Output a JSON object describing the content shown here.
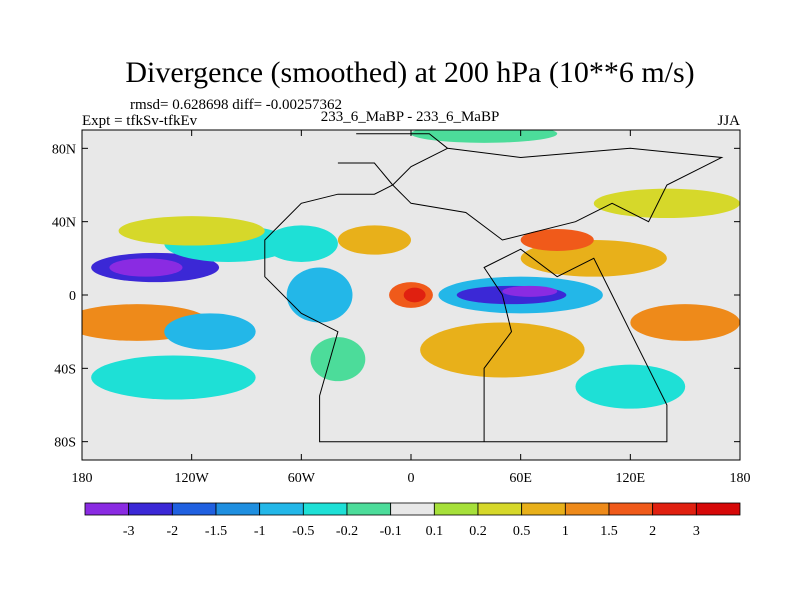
{
  "chart_data": {
    "type": "heatmap",
    "title": "Divergence (smoothed) at 200 hPa (10**6 m/s)",
    "stats_line": "rmsd= 0.628698 diff= -0.00257362",
    "experiment_label": "Expt = tfkSv-tfkEv",
    "case_label": "233_6_MaBP - 233_6_MaBP",
    "season": "JJA",
    "xlim": [
      -180,
      180
    ],
    "ylim": [
      -90,
      90
    ],
    "x_ticks": [
      {
        "value": -180,
        "label": "180"
      },
      {
        "value": -120,
        "label": "120W"
      },
      {
        "value": -60,
        "label": "60W"
      },
      {
        "value": 0,
        "label": "0"
      },
      {
        "value": 60,
        "label": "60E"
      },
      {
        "value": 120,
        "label": "120E"
      },
      {
        "value": 180,
        "label": "180"
      }
    ],
    "y_ticks": [
      {
        "value": 80,
        "label": "80N"
      },
      {
        "value": 40,
        "label": "40N"
      },
      {
        "value": 0,
        "label": "0"
      },
      {
        "value": -40,
        "label": "40S"
      },
      {
        "value": -80,
        "label": "80S"
      }
    ],
    "colorbar_labels": [
      "-3",
      "-2",
      "-1.5",
      "-1",
      "-0.5",
      "-0.2",
      "-0.1",
      "0.1",
      "0.2",
      "0.5",
      "1",
      "1.5",
      "2",
      "3"
    ],
    "colors": [
      "#8a2be2",
      "#3b28d6",
      "#2060e0",
      "#1f8fe0",
      "#23b7e8",
      "#1ee0d6",
      "#4cdc9a",
      "#e8e8e8",
      "#a6e03a",
      "#d6d82a",
      "#e8b01a",
      "#ee8a1a",
      "#f05a1a",
      "#e02010",
      "#d60808"
    ],
    "regions": [
      {
        "lon": -140,
        "lat": 15,
        "rx": 35,
        "ry": 8,
        "level": 1
      },
      {
        "lon": -145,
        "lat": 15,
        "rx": 20,
        "ry": 5,
        "level": 0
      },
      {
        "lon": -100,
        "lat": 28,
        "rx": 35,
        "ry": 10,
        "level": 5
      },
      {
        "lon": -60,
        "lat": 28,
        "rx": 20,
        "ry": 10,
        "level": 5
      },
      {
        "lon": -120,
        "lat": 35,
        "rx": 40,
        "ry": 8,
        "level": 9
      },
      {
        "lon": -150,
        "lat": -15,
        "rx": 40,
        "ry": 10,
        "level": 11
      },
      {
        "lon": -110,
        "lat": -20,
        "rx": 25,
        "ry": 10,
        "level": 4
      },
      {
        "lon": -130,
        "lat": -45,
        "rx": 45,
        "ry": 12,
        "level": 5
      },
      {
        "lon": -50,
        "lat": 0,
        "rx": 18,
        "ry": 15,
        "level": 4
      },
      {
        "lon": -40,
        "lat": -35,
        "rx": 15,
        "ry": 12,
        "level": 6
      },
      {
        "lon": -20,
        "lat": 30,
        "rx": 20,
        "ry": 8,
        "level": 10
      },
      {
        "lon": 0,
        "lat": 0,
        "rx": 12,
        "ry": 7,
        "level": 12
      },
      {
        "lon": 2,
        "lat": 0,
        "rx": 6,
        "ry": 4,
        "level": 13
      },
      {
        "lon": 60,
        "lat": 0,
        "rx": 45,
        "ry": 10,
        "level": 4
      },
      {
        "lon": 55,
        "lat": 0,
        "rx": 30,
        "ry": 5,
        "level": 1
      },
      {
        "lon": 65,
        "lat": 2,
        "rx": 15,
        "ry": 3,
        "level": 0
      },
      {
        "lon": 50,
        "lat": -30,
        "rx": 45,
        "ry": 15,
        "level": 10
      },
      {
        "lon": 100,
        "lat": 20,
        "rx": 40,
        "ry": 10,
        "level": 10
      },
      {
        "lon": 80,
        "lat": 30,
        "rx": 20,
        "ry": 6,
        "level": 12
      },
      {
        "lon": 150,
        "lat": -15,
        "rx": 30,
        "ry": 10,
        "level": 11
      },
      {
        "lon": 140,
        "lat": 50,
        "rx": 40,
        "ry": 8,
        "level": 9
      },
      {
        "lon": 40,
        "lat": 88,
        "rx": 40,
        "ry": 5,
        "level": 6
      },
      {
        "lon": 120,
        "lat": -50,
        "rx": 30,
        "ry": 12,
        "level": 5
      }
    ],
    "outline_continents": true
  }
}
